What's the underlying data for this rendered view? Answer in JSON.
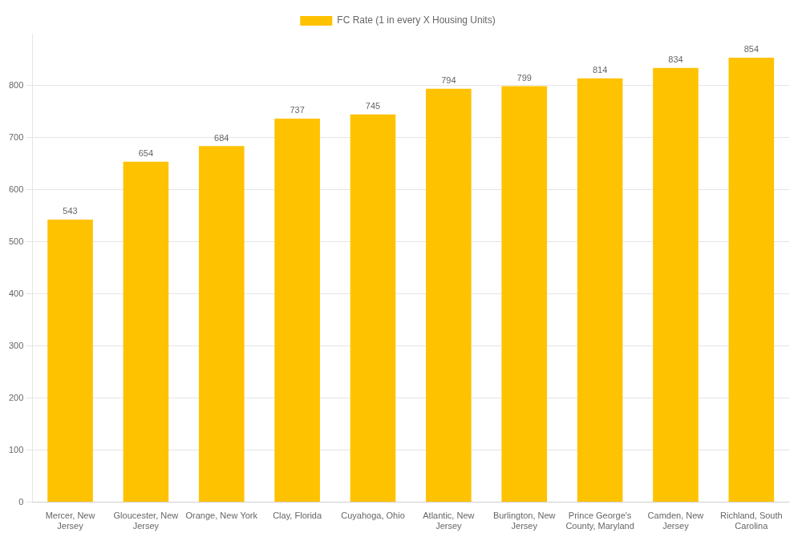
{
  "chart_data": {
    "type": "bar",
    "categories": [
      "Mercer, New\nJersey",
      "Gloucester, New\nJersey",
      "Orange, New York",
      "Clay, Florida",
      "Cuyahoga, Ohio",
      "Atlantic, New\nJersey",
      "Burlington, New\nJersey",
      "Prince George's\nCounty, Maryland",
      "Camden, New\nJersey",
      "Richland, South\nCarolina"
    ],
    "series": [
      {
        "name": "FC Rate (1 in every X Housing Units)",
        "color": "#FFC200",
        "values": [
          543,
          654,
          684,
          737,
          745,
          794,
          799,
          814,
          834,
          854
        ]
      }
    ],
    "ylim": [
      0,
      900
    ],
    "yticks": [
      0,
      100,
      200,
      300,
      400,
      500,
      600,
      700,
      800
    ],
    "grid": true,
    "legend": "top",
    "data_labels": true
  }
}
